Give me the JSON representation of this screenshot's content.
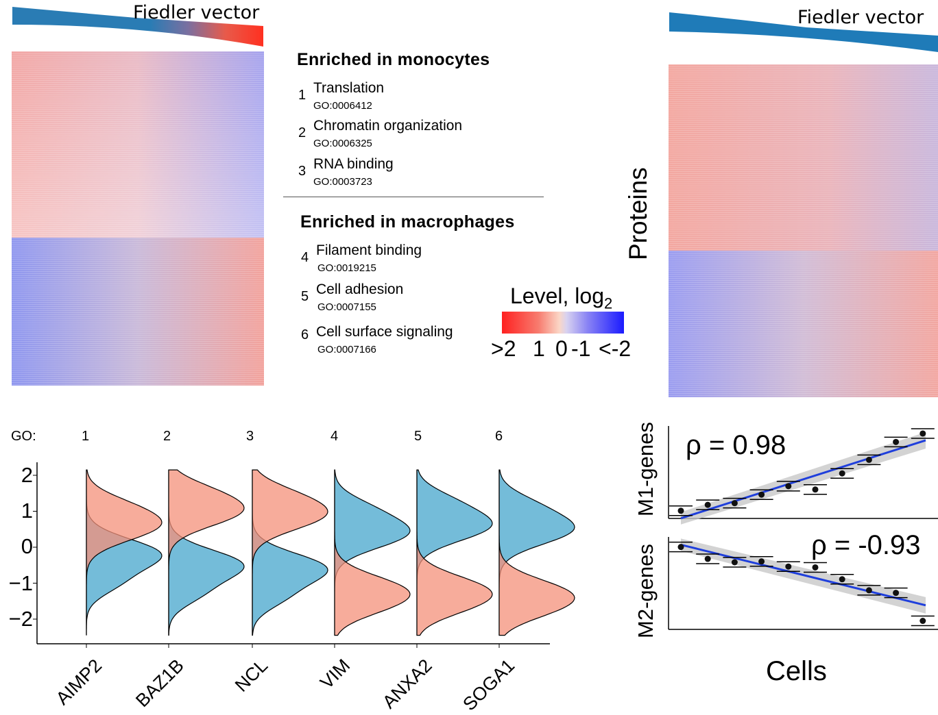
{
  "left_heatmap": {
    "title": "Fiedler vector"
  },
  "right_heatmap": {
    "title": "Fiedler vector",
    "ylabel": "Proteins"
  },
  "go_panel": {
    "monocytes_heading": "Enriched in monocytes",
    "macrophages_heading": "Enriched in macrophages",
    "monocyte_terms": [
      {
        "index": "1",
        "name": "Translation",
        "id": "GO:0006412"
      },
      {
        "index": "2",
        "name": "Chromatin organization",
        "id": "GO:0006325"
      },
      {
        "index": "3",
        "name": "RNA binding",
        "id": "GO:0003723"
      }
    ],
    "macrophage_terms": [
      {
        "index": "4",
        "name": "Filament binding",
        "id": "GO:0019215"
      },
      {
        "index": "5",
        "name": "Cell adhesion",
        "id": "GO:0007155"
      },
      {
        "index": "6",
        "name": "Cell surface signaling",
        "id": "GO:0007166"
      }
    ]
  },
  "colorbar": {
    "title": "Level, log",
    "title_sub": "2",
    "ticks": [
      ">2",
      "1",
      "0",
      "-1",
      "<-2"
    ],
    "colors": {
      "high": "#ff2020",
      "mid": "#f2f2f2",
      "low": "#1a1aff"
    }
  },
  "violin_panel": {
    "go_label": "GO:",
    "yticks": [
      "2",
      "1",
      "0",
      "−1",
      "−2"
    ],
    "colors": {
      "monocyte": "#f4907a",
      "macrophage": "#74bcd9",
      "overlap": "#b57a72"
    }
  },
  "corr_panel": {
    "m1_label": "M1-genes",
    "m2_label": "M2-genes",
    "m1_rho": "ρ = 0.98",
    "m2_rho": "ρ = -0.93",
    "xlabel": "Cells"
  },
  "chart_data": [
    {
      "type": "violin",
      "go_categories": [
        "1",
        "2",
        "3",
        "4",
        "5",
        "6"
      ],
      "genes": [
        "AIMP2",
        "BAZ1B",
        "NCL",
        "VIM",
        "ANXA2",
        "SOGA1"
      ],
      "ylim": [
        -2.5,
        2.2
      ],
      "yticks": [
        2,
        1,
        0,
        -1,
        -2
      ],
      "series": [
        {
          "mode": [
            0.6,
            1.0,
            0.9,
            -1.2,
            -1.2,
            -1.3
          ]
        },
        {
          "mode": [
            -0.2,
            -0.5,
            -0.6,
            0.4,
            0.6,
            0.5
          ]
        }
      ]
    },
    {
      "type": "scatter",
      "ylabel": "M1-genes",
      "annotation": "ρ = 0.98",
      "points": [
        0.05,
        0.12,
        0.14,
        0.24,
        0.34,
        0.3,
        0.49,
        0.65,
        0.86,
        0.96
      ],
      "trend": "increasing"
    },
    {
      "type": "scatter",
      "ylabel": "M2-genes",
      "annotation": "ρ = -0.93",
      "points": [
        0.93,
        0.79,
        0.75,
        0.76,
        0.7,
        0.69,
        0.55,
        0.42,
        0.39,
        0.06
      ],
      "trend": "decreasing"
    }
  ]
}
